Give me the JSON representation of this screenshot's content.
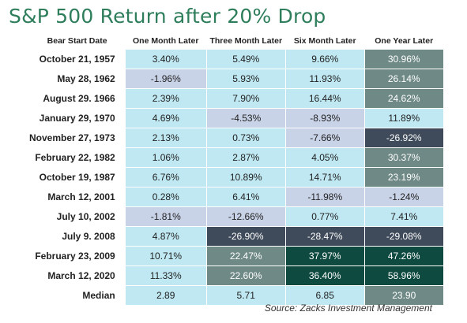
{
  "title": "S&P 500 Return after 20% Drop",
  "source": "Source: Zacks Investment Management",
  "colors": {
    "title": "#2e7d5b",
    "header_first_col": "#ffffff",
    "light_blue": "#bfe8f2",
    "lavender": "#c9d3e8",
    "gray_blue": "#6f8a86",
    "dark_slate": "#3f4b5a",
    "dark_teal": "#0f4a40",
    "text_dark": "#222222",
    "text_light": "#ffffff"
  },
  "chart_data": {
    "type": "table",
    "columns": [
      "Bear Start Date",
      "One Month Later",
      "Three Month Later",
      "Six Month Later",
      "One Year Later"
    ],
    "rows": [
      {
        "label": "October 21, 1957",
        "values": [
          "3.40%",
          "5.49%",
          "9.66%",
          "30.96%"
        ],
        "shades": [
          "light_blue",
          "light_blue",
          "light_blue",
          "gray_blue"
        ]
      },
      {
        "label": "May 28, 1962",
        "values": [
          "-1.96%",
          "5.93%",
          "11.93%",
          "26.14%"
        ],
        "shades": [
          "lavender",
          "light_blue",
          "light_blue",
          "gray_blue"
        ]
      },
      {
        "label": "August 29. 1966",
        "values": [
          "2.39%",
          "7.90%",
          "16.44%",
          "24.62%"
        ],
        "shades": [
          "light_blue",
          "light_blue",
          "light_blue",
          "gray_blue"
        ]
      },
      {
        "label": "January 29, 1970",
        "values": [
          "4.69%",
          "-4.53%",
          "-8.93%",
          "11.89%"
        ],
        "shades": [
          "light_blue",
          "lavender",
          "lavender",
          "light_blue"
        ]
      },
      {
        "label": "November 27, 1973",
        "values": [
          "2.13%",
          "0.73%",
          "-7.66%",
          "-26.92%"
        ],
        "shades": [
          "light_blue",
          "light_blue",
          "lavender",
          "dark_slate"
        ]
      },
      {
        "label": "February 22, 1982",
        "values": [
          "1.06%",
          "2.87%",
          "4.05%",
          "30.37%"
        ],
        "shades": [
          "light_blue",
          "light_blue",
          "light_blue",
          "gray_blue"
        ]
      },
      {
        "label": "October 19, 1987",
        "values": [
          "6.76%",
          "10.89%",
          "14.71%",
          "23.19%"
        ],
        "shades": [
          "light_blue",
          "light_blue",
          "light_blue",
          "gray_blue"
        ]
      },
      {
        "label": "March 12, 2001",
        "values": [
          "0.28%",
          "6.41%",
          "-11.98%",
          "-1.24%"
        ],
        "shades": [
          "light_blue",
          "light_blue",
          "lavender",
          "lavender"
        ]
      },
      {
        "label": "July 10, 2002",
        "values": [
          "-1.81%",
          "-12.66%",
          "0.77%",
          "7.41%"
        ],
        "shades": [
          "lavender",
          "lavender",
          "light_blue",
          "light_blue"
        ]
      },
      {
        "label": "July 9. 2008",
        "values": [
          "4.87%",
          "-26.90%",
          "-28.47%",
          "-29.08%"
        ],
        "shades": [
          "light_blue",
          "dark_slate",
          "dark_slate",
          "dark_slate"
        ]
      },
      {
        "label": "February 23, 2009",
        "values": [
          "10.71%",
          "22.47%",
          "37.97%",
          "47.26%"
        ],
        "shades": [
          "light_blue",
          "gray_blue",
          "dark_teal",
          "dark_teal"
        ]
      },
      {
        "label": "March 12, 2020",
        "values": [
          "11.33%",
          "22.60%",
          "36.40%",
          "58.96%"
        ],
        "shades": [
          "light_blue",
          "gray_blue",
          "dark_teal",
          "dark_teal"
        ]
      },
      {
        "label": "Median",
        "values": [
          "2.89",
          "5.71",
          "6.85",
          "23.90"
        ],
        "shades": [
          "light_blue",
          "light_blue",
          "light_blue",
          "gray_blue"
        ]
      }
    ]
  }
}
